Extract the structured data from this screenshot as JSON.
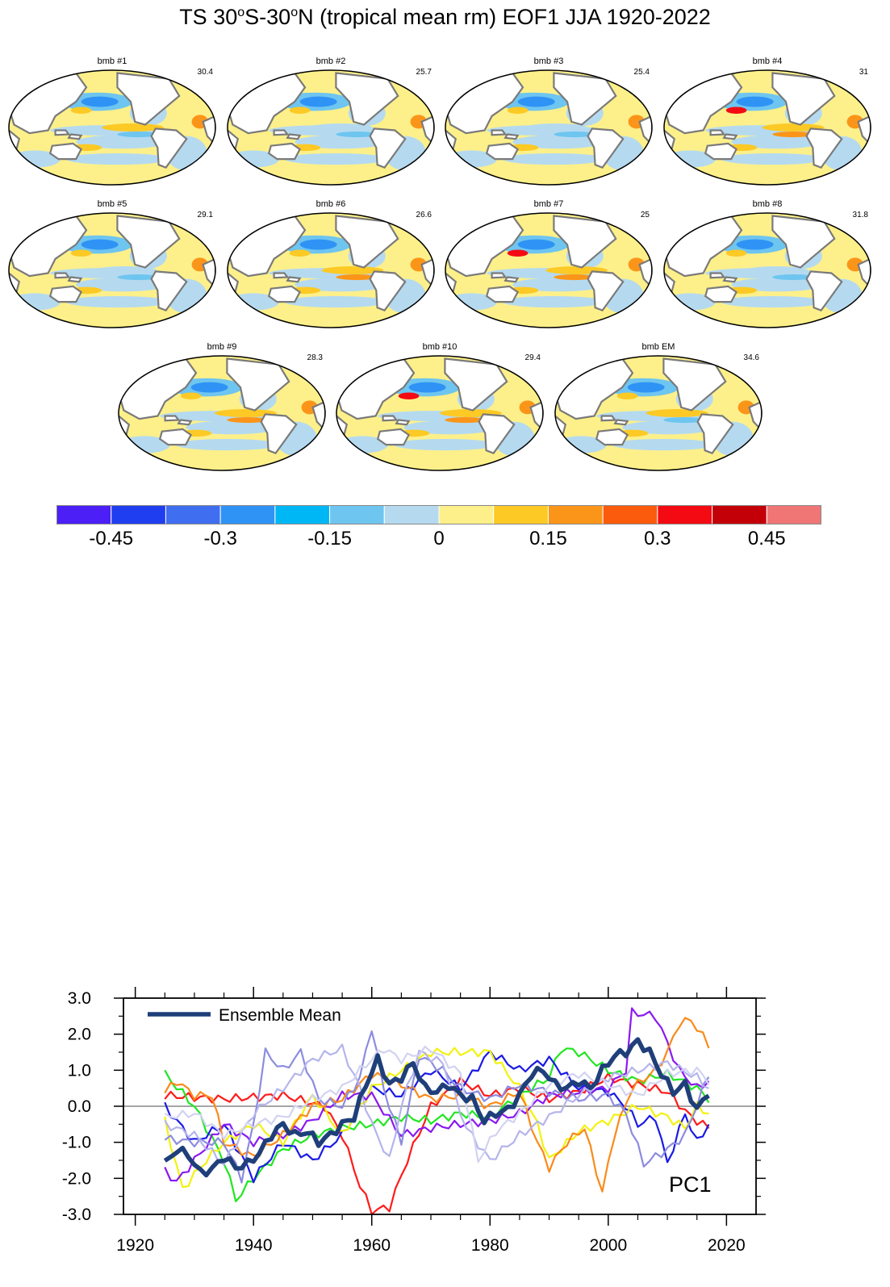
{
  "title": {
    "main_a": "TS 30",
    "sup_a": "o",
    "main_b": "S-30",
    "sup_b": "o",
    "main_c": "N (tropical mean rm) EOF1 JJA 1920-2022"
  },
  "panels": [
    {
      "name": "bmb #1",
      "variance": "30.4",
      "tint": 0.05
    },
    {
      "name": "bmb #2",
      "variance": "25.7",
      "tint": -0.05
    },
    {
      "name": "bmb #3",
      "variance": "25.4",
      "tint": -0.08
    },
    {
      "name": "bmb #4",
      "variance": "31",
      "tint": 0.1
    },
    {
      "name": "bmb #5",
      "variance": "29.1",
      "tint": -0.02
    },
    {
      "name": "bmb #6",
      "variance": "26.6",
      "tint": 0.06
    },
    {
      "name": "bmb #7",
      "variance": "25",
      "tint": 0.12
    },
    {
      "name": "bmb #8",
      "variance": "31.8",
      "tint": -0.06
    },
    {
      "name": "bmb #9",
      "variance": "28.3",
      "tint": 0.08
    },
    {
      "name": "bmb #10",
      "variance": "29.4",
      "tint": 0.15
    },
    {
      "name": "bmb EM",
      "variance": "34.6",
      "tint": 0.03
    }
  ],
  "colorbar": {
    "colors": [
      "#4b1ff5",
      "#1f3ef0",
      "#3f6ef0",
      "#2f93f5",
      "#00b7f5",
      "#6ec5f0",
      "#b5daf0",
      "#fdf08a",
      "#fcc925",
      "#fb9519",
      "#fb5b0c",
      "#f40a13",
      "#c30008",
      "#f07676"
    ],
    "labels": [
      "-0.45",
      "-0.3",
      "-0.15",
      "0",
      "0.15",
      "0.3",
      "0.45"
    ]
  },
  "chart_data": {
    "type": "line",
    "x_start": 1925,
    "x_end": 2017,
    "xlim": [
      1918,
      2025
    ],
    "ylim": [
      -3.0,
      3.0
    ],
    "xticks": [
      "1920",
      "1940",
      "1960",
      "1980",
      "2000",
      "2020"
    ],
    "xtick_values": [
      1920,
      1940,
      1960,
      1980,
      2000,
      2020
    ],
    "yticks": [
      "3.0",
      "2.0",
      "1.0",
      "0.0",
      "-1.0",
      "-2.0",
      "-3.0"
    ],
    "ytick_values": [
      3,
      2,
      1,
      0,
      -1,
      -2,
      -3
    ],
    "legend": "Ensemble Mean",
    "annotation": "PC1",
    "zero_line": true,
    "members": [
      {
        "name": "red",
        "color": "#ff1a1a",
        "knots": [
          [
            1925,
            0.3
          ],
          [
            1935,
            0.2
          ],
          [
            1945,
            0.3
          ],
          [
            1952,
            0.0
          ],
          [
            1955,
            -0.8
          ],
          [
            1958,
            -2.2
          ],
          [
            1960,
            -2.9
          ],
          [
            1963,
            -2.8
          ],
          [
            1966,
            -1.5
          ],
          [
            1970,
            0.0
          ],
          [
            1975,
            0.7
          ],
          [
            1980,
            0.3
          ],
          [
            1985,
            0.5
          ],
          [
            1990,
            0.2
          ],
          [
            1995,
            0.4
          ],
          [
            2000,
            0.8
          ],
          [
            2005,
            0.6
          ],
          [
            2010,
            0.4
          ],
          [
            2014,
            -0.3
          ],
          [
            2017,
            -0.6
          ]
        ]
      },
      {
        "name": "green",
        "color": "#22e622",
        "knots": [
          [
            1925,
            0.9
          ],
          [
            1930,
            0.0
          ],
          [
            1935,
            -1.5
          ],
          [
            1937,
            -2.6
          ],
          [
            1940,
            -2.0
          ],
          [
            1945,
            -1.2
          ],
          [
            1950,
            -0.8
          ],
          [
            1955,
            -0.6
          ],
          [
            1960,
            -0.5
          ],
          [
            1965,
            -0.3
          ],
          [
            1970,
            -0.4
          ],
          [
            1975,
            -0.2
          ],
          [
            1980,
            -0.3
          ],
          [
            1985,
            0.3
          ],
          [
            1990,
            0.8
          ],
          [
            1992,
            1.6
          ],
          [
            1995,
            1.5
          ],
          [
            2000,
            1.0
          ],
          [
            2005,
            0.7
          ],
          [
            2010,
            0.9
          ],
          [
            2015,
            0.5
          ],
          [
            2017,
            0.2
          ]
        ]
      },
      {
        "name": "blue",
        "color": "#1a1ae6",
        "knots": [
          [
            1925,
            0.0
          ],
          [
            1930,
            -1.0
          ],
          [
            1935,
            -0.5
          ],
          [
            1940,
            -2.0
          ],
          [
            1945,
            -1.0
          ],
          [
            1950,
            -1.5
          ],
          [
            1955,
            -0.8
          ],
          [
            1960,
            0.5
          ],
          [
            1965,
            0.3
          ],
          [
            1970,
            1.0
          ],
          [
            1975,
            0.5
          ],
          [
            1980,
            1.5
          ],
          [
            1985,
            1.0
          ],
          [
            1990,
            1.3
          ],
          [
            1995,
            0.5
          ],
          [
            2000,
            0.4
          ],
          [
            2003,
            0.0
          ],
          [
            2005,
            -0.5
          ],
          [
            2008,
            -0.3
          ],
          [
            2010,
            -1.6
          ],
          [
            2013,
            -0.2
          ],
          [
            2015,
            -1.0
          ],
          [
            2017,
            -0.5
          ]
        ]
      },
      {
        "name": "yellow",
        "color": "#f2f20f",
        "knots": [
          [
            1925,
            -0.4
          ],
          [
            1928,
            -2.3
          ],
          [
            1932,
            -1.5
          ],
          [
            1935,
            -1.0
          ],
          [
            1940,
            -0.5
          ],
          [
            1945,
            -1.0
          ],
          [
            1950,
            0.3
          ],
          [
            1955,
            -0.8
          ],
          [
            1960,
            0.5
          ],
          [
            1965,
            1.0
          ],
          [
            1970,
            1.5
          ],
          [
            1975,
            1.5
          ],
          [
            1980,
            1.5
          ],
          [
            1985,
            0.5
          ],
          [
            1988,
            -0.5
          ],
          [
            1990,
            -1.5
          ],
          [
            1995,
            -0.7
          ],
          [
            2000,
            -0.4
          ],
          [
            2005,
            0.0
          ],
          [
            2010,
            -0.3
          ],
          [
            2013,
            -0.6
          ],
          [
            2015,
            0.0
          ],
          [
            2017,
            -0.2
          ]
        ]
      },
      {
        "name": "purple",
        "color": "#8a1af0",
        "knots": [
          [
            1925,
            -1.8
          ],
          [
            1927,
            -2.1
          ],
          [
            1930,
            -1.5
          ],
          [
            1935,
            -0.5
          ],
          [
            1940,
            -1.0
          ],
          [
            1945,
            -0.8
          ],
          [
            1950,
            -0.4
          ],
          [
            1955,
            0.3
          ],
          [
            1960,
            0.3
          ],
          [
            1965,
            -0.8
          ],
          [
            1970,
            -0.6
          ],
          [
            1975,
            -0.5
          ],
          [
            1980,
            -0.4
          ],
          [
            1985,
            -0.2
          ],
          [
            1990,
            0.3
          ],
          [
            1995,
            0.4
          ],
          [
            2000,
            0.5
          ],
          [
            2003,
            1.0
          ],
          [
            2004,
            2.6
          ],
          [
            2008,
            2.5
          ],
          [
            2012,
            1.0
          ],
          [
            2015,
            0.5
          ],
          [
            2017,
            0.7
          ]
        ]
      },
      {
        "name": "orange",
        "color": "#fa8a1a",
        "knots": [
          [
            1925,
            0.4
          ],
          [
            1927,
            0.7
          ],
          [
            1930,
            0.3
          ],
          [
            1933,
            0.3
          ],
          [
            1935,
            -1.0
          ],
          [
            1940,
            -1.4
          ],
          [
            1945,
            -0.8
          ],
          [
            1950,
            0.0
          ],
          [
            1955,
            0.2
          ],
          [
            1960,
            0.9
          ],
          [
            1965,
            0.6
          ],
          [
            1970,
            0.2
          ],
          [
            1975,
            0.3
          ],
          [
            1980,
            0.0
          ],
          [
            1985,
            0.4
          ],
          [
            1988,
            -1.0
          ],
          [
            1990,
            -1.7
          ],
          [
            1993,
            -1.0
          ],
          [
            1996,
            -0.6
          ],
          [
            1999,
            -2.4
          ],
          [
            2001,
            -0.8
          ],
          [
            2004,
            0.5
          ],
          [
            2008,
            1.0
          ],
          [
            2010,
            1.5
          ],
          [
            2012,
            2.3
          ],
          [
            2014,
            2.4
          ],
          [
            2017,
            1.7
          ]
        ]
      },
      {
        "name": "lavender",
        "color": "#8c8ce0",
        "knots": [
          [
            1925,
            -0.9
          ],
          [
            1930,
            -1.0
          ],
          [
            1935,
            -1.0
          ],
          [
            1938,
            -2.0
          ],
          [
            1940,
            -0.5
          ],
          [
            1942,
            1.5
          ],
          [
            1945,
            1.0
          ],
          [
            1948,
            1.5
          ],
          [
            1951,
            0.2
          ],
          [
            1955,
            0.0
          ],
          [
            1958,
            0.8
          ],
          [
            1960,
            2.2
          ],
          [
            1962,
            0.5
          ],
          [
            1965,
            -1.0
          ],
          [
            1968,
            1.4
          ],
          [
            1972,
            1.0
          ],
          [
            1975,
            0.5
          ],
          [
            1980,
            0.2
          ],
          [
            1985,
            0.6
          ],
          [
            1990,
            0.4
          ],
          [
            1995,
            0.2
          ],
          [
            2000,
            0.3
          ],
          [
            2003,
            -0.2
          ],
          [
            2006,
            -1.6
          ],
          [
            2010,
            -1.2
          ],
          [
            2013,
            -0.8
          ],
          [
            2017,
            0.9
          ]
        ]
      },
      {
        "name": "lightlavender",
        "color": "#b4b4ec",
        "knots": [
          [
            1925,
            -0.5
          ],
          [
            1930,
            -0.8
          ],
          [
            1935,
            -1.6
          ],
          [
            1940,
            -0.2
          ],
          [
            1945,
            0.5
          ],
          [
            1950,
            1.3
          ],
          [
            1955,
            1.6
          ],
          [
            1958,
            0.5
          ],
          [
            1960,
            -0.5
          ],
          [
            1963,
            -1.5
          ],
          [
            1965,
            0.0
          ],
          [
            1968,
            1.5
          ],
          [
            1972,
            1.2
          ],
          [
            1976,
            -0.6
          ],
          [
            1980,
            -1.5
          ],
          [
            1985,
            -0.8
          ],
          [
            1990,
            -0.3
          ],
          [
            1995,
            0.3
          ],
          [
            2000,
            0.8
          ],
          [
            2005,
            1.0
          ],
          [
            2010,
            1.2
          ],
          [
            2015,
            0.8
          ],
          [
            2017,
            0.5
          ]
        ]
      },
      {
        "name": "palelavender",
        "color": "#d2d2f2",
        "knots": [
          [
            1925,
            -0.3
          ],
          [
            1930,
            -0.2
          ],
          [
            1935,
            -0.8
          ],
          [
            1940,
            -0.5
          ],
          [
            1945,
            -0.3
          ],
          [
            1950,
            0.2
          ],
          [
            1955,
            0.5
          ],
          [
            1958,
            1.0
          ],
          [
            1962,
            1.6
          ],
          [
            1965,
            1.3
          ],
          [
            1970,
            1.6
          ],
          [
            1975,
            0.9
          ],
          [
            1978,
            -1.5
          ],
          [
            1981,
            -0.7
          ],
          [
            1985,
            -0.2
          ],
          [
            1990,
            0.6
          ],
          [
            1995,
            0.9
          ],
          [
            2000,
            0.6
          ],
          [
            2005,
            0.3
          ],
          [
            2010,
            0.9
          ],
          [
            2015,
            1.0
          ],
          [
            2017,
            0.7
          ]
        ]
      }
    ],
    "ensemble_mean": {
      "name": "Ensemble Mean",
      "color": "#1f3f7a",
      "knots": [
        [
          1925,
          -1.6
        ],
        [
          1927,
          -1.2
        ],
        [
          1929,
          -1.35
        ],
        [
          1931,
          -1.85
        ],
        [
          1933,
          -1.75
        ],
        [
          1935,
          -1.4
        ],
        [
          1937,
          -1.7
        ],
        [
          1939,
          -1.6
        ],
        [
          1941,
          -1.3
        ],
        [
          1943,
          -0.8
        ],
        [
          1945,
          -0.5
        ],
        [
          1947,
          -0.8
        ],
        [
          1949,
          -0.7
        ],
        [
          1951,
          -1.0
        ],
        [
          1953,
          -0.8
        ],
        [
          1955,
          -0.5
        ],
        [
          1957,
          -0.3
        ],
        [
          1959,
          0.6
        ],
        [
          1961,
          1.3
        ],
        [
          1963,
          0.6
        ],
        [
          1965,
          0.8
        ],
        [
          1967,
          1.2
        ],
        [
          1969,
          0.5
        ],
        [
          1971,
          0.4
        ],
        [
          1973,
          0.6
        ],
        [
          1975,
          0.3
        ],
        [
          1977,
          0.2
        ],
        [
          1979,
          -0.4
        ],
        [
          1981,
          -0.2
        ],
        [
          1983,
          -0.1
        ],
        [
          1985,
          0.3
        ],
        [
          1987,
          0.9
        ],
        [
          1989,
          1.0
        ],
        [
          1991,
          0.6
        ],
        [
          1993,
          0.5
        ],
        [
          1995,
          0.7
        ],
        [
          1997,
          0.5
        ],
        [
          1999,
          1.0
        ],
        [
          2001,
          1.4
        ],
        [
          2003,
          1.5
        ],
        [
          2005,
          1.8
        ],
        [
          2007,
          1.5
        ],
        [
          2009,
          0.9
        ],
        [
          2011,
          0.4
        ],
        [
          2013,
          0.6
        ],
        [
          2015,
          -0.1
        ],
        [
          2017,
          0.4
        ]
      ]
    }
  }
}
